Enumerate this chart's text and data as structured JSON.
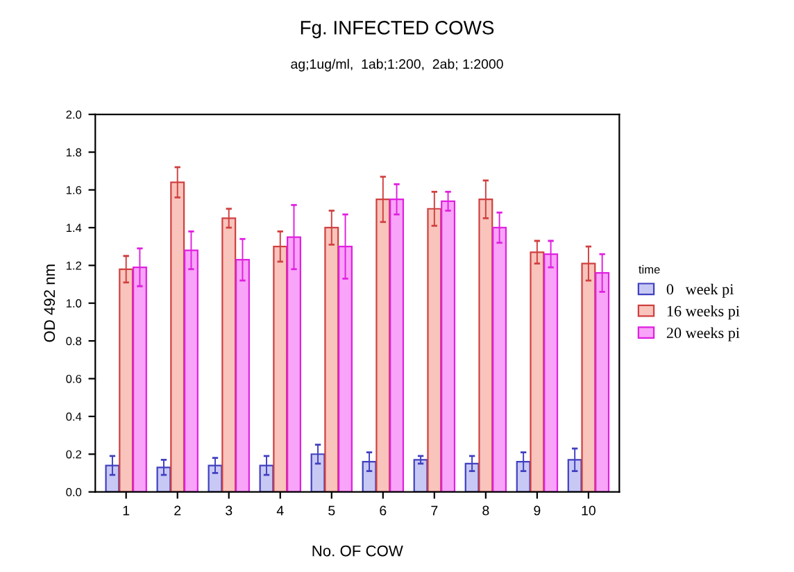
{
  "chart_data": {
    "type": "bar",
    "title": "Fg. INFECTED COWS",
    "subtitle": "ag;1ug/ml,  1ab;1:200,  2ab; 1:2000",
    "xlabel": "No. OF COW",
    "ylabel": "OD 492 nm",
    "legend_title": "time",
    "legend": "right",
    "categories": [
      "1",
      "2",
      "3",
      "4",
      "5",
      "6",
      "7",
      "8",
      "9",
      "10"
    ],
    "ylim": [
      0,
      2.0
    ],
    "yticks": [
      {
        "value": 0,
        "label": "0.0"
      },
      {
        "value": 0.2,
        "label": "0.2"
      },
      {
        "value": 0.4,
        "label": "0.4"
      },
      {
        "value": 0.6,
        "label": "0.6"
      },
      {
        "value": 0.8,
        "label": "0.8"
      },
      {
        "value": 1.0,
        "label": "1.0"
      },
      {
        "value": 1.2,
        "label": "1.2"
      },
      {
        "value": 1.4,
        "label": "1.4"
      },
      {
        "value": 1.6,
        "label": "1.6"
      },
      {
        "value": 1.8,
        "label": "1.8"
      },
      {
        "value": 2.0,
        "label": "2.0"
      }
    ],
    "grid": false,
    "series": [
      {
        "name": "0   week pi",
        "color": "#c8c8f5",
        "values": [
          0.14,
          0.13,
          0.14,
          0.14,
          0.2,
          0.16,
          0.17,
          0.15,
          0.16,
          0.17
        ],
        "errors": [
          0.05,
          0.04,
          0.04,
          0.05,
          0.05,
          0.05,
          0.02,
          0.04,
          0.05,
          0.06
        ]
      },
      {
        "name": "16 weeks pi",
        "color": "#f8c4bc",
        "values": [
          1.18,
          1.64,
          1.45,
          1.3,
          1.4,
          1.55,
          1.5,
          1.55,
          1.27,
          1.21
        ],
        "errors": [
          0.07,
          0.08,
          0.05,
          0.08,
          0.09,
          0.12,
          0.09,
          0.1,
          0.06,
          0.09
        ]
      },
      {
        "name": "20 weeks pi",
        "color": "#f8a4f8",
        "values": [
          1.19,
          1.28,
          1.23,
          1.35,
          1.3,
          1.55,
          1.54,
          1.4,
          1.26,
          1.16
        ],
        "errors": [
          0.1,
          0.1,
          0.11,
          0.17,
          0.17,
          0.08,
          0.05,
          0.08,
          0.07,
          0.1
        ]
      }
    ]
  }
}
